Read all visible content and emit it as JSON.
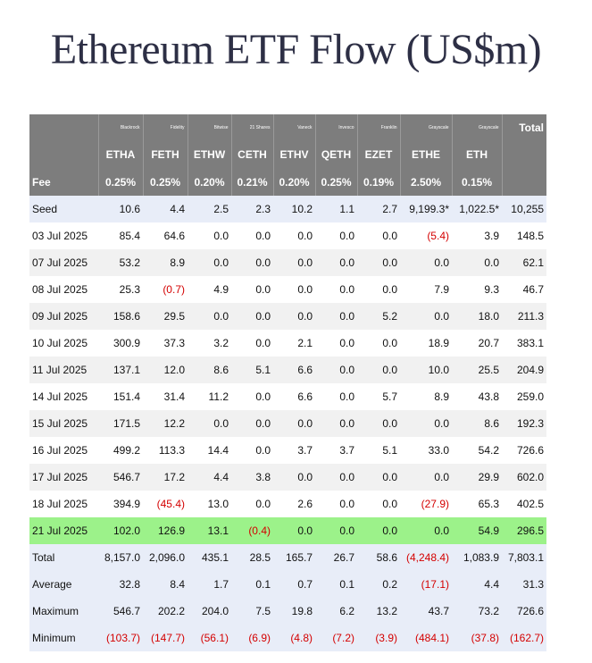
{
  "title": "Ethereum ETF Flow (US$m)",
  "header": {
    "total_label": "Total",
    "fee_label": "Fee",
    "funds": [
      {
        "issuer": "Blackrock",
        "ticker": "ETHA",
        "fee": "0.25%"
      },
      {
        "issuer": "Fidelity",
        "ticker": "FETH",
        "fee": "0.25%"
      },
      {
        "issuer": "Bitwise",
        "ticker": "ETHW",
        "fee": "0.20%"
      },
      {
        "issuer": "21 Shares",
        "ticker": "CETH",
        "fee": "0.21%"
      },
      {
        "issuer": "Vaneck",
        "ticker": "ETHV",
        "fee": "0.20%"
      },
      {
        "issuer": "Invesco",
        "ticker": "QETH",
        "fee": "0.25%"
      },
      {
        "issuer": "Franklin",
        "ticker": "EZET",
        "fee": "0.19%"
      },
      {
        "issuer": "Grayscale",
        "ticker": "ETHE",
        "fee": "2.50%"
      },
      {
        "issuer": "Grayscale",
        "ticker": "ETH",
        "fee": "0.15%"
      }
    ]
  },
  "rows": [
    {
      "label": "Seed",
      "style": "blue",
      "values": [
        "10.6",
        "4.4",
        "2.5",
        "2.3",
        "10.2",
        "1.1",
        "2.7",
        "9,199.3*",
        "1,022.5*",
        "10,255"
      ]
    },
    {
      "label": "03 Jul 2025",
      "style": "plain",
      "values": [
        "85.4",
        "64.6",
        "0.0",
        "0.0",
        "0.0",
        "0.0",
        "0.0",
        "(5.4)",
        "3.9",
        "148.5"
      ]
    },
    {
      "label": "07 Jul 2025",
      "style": "alt",
      "values": [
        "53.2",
        "8.9",
        "0.0",
        "0.0",
        "0.0",
        "0.0",
        "0.0",
        "0.0",
        "0.0",
        "62.1"
      ]
    },
    {
      "label": "08 Jul 2025",
      "style": "plain",
      "values": [
        "25.3",
        "(0.7)",
        "4.9",
        "0.0",
        "0.0",
        "0.0",
        "0.0",
        "7.9",
        "9.3",
        "46.7"
      ]
    },
    {
      "label": "09 Jul 2025",
      "style": "alt",
      "values": [
        "158.6",
        "29.5",
        "0.0",
        "0.0",
        "0.0",
        "0.0",
        "5.2",
        "0.0",
        "18.0",
        "211.3"
      ]
    },
    {
      "label": "10 Jul 2025",
      "style": "plain",
      "values": [
        "300.9",
        "37.3",
        "3.2",
        "0.0",
        "2.1",
        "0.0",
        "0.0",
        "18.9",
        "20.7",
        "383.1"
      ]
    },
    {
      "label": "11 Jul 2025",
      "style": "alt",
      "values": [
        "137.1",
        "12.0",
        "8.6",
        "5.1",
        "6.6",
        "0.0",
        "0.0",
        "10.0",
        "25.5",
        "204.9"
      ]
    },
    {
      "label": "14 Jul 2025",
      "style": "plain",
      "values": [
        "151.4",
        "31.4",
        "11.2",
        "0.0",
        "6.6",
        "0.0",
        "5.7",
        "8.9",
        "43.8",
        "259.0"
      ]
    },
    {
      "label": "15 Jul 2025",
      "style": "alt",
      "values": [
        "171.5",
        "12.2",
        "0.0",
        "0.0",
        "0.0",
        "0.0",
        "0.0",
        "0.0",
        "8.6",
        "192.3"
      ]
    },
    {
      "label": "16 Jul 2025",
      "style": "plain",
      "values": [
        "499.2",
        "113.3",
        "14.4",
        "0.0",
        "3.7",
        "3.7",
        "5.1",
        "33.0",
        "54.2",
        "726.6"
      ]
    },
    {
      "label": "17 Jul 2025",
      "style": "alt",
      "values": [
        "546.7",
        "17.2",
        "4.4",
        "3.8",
        "0.0",
        "0.0",
        "0.0",
        "0.0",
        "29.9",
        "602.0"
      ]
    },
    {
      "label": "18 Jul 2025",
      "style": "plain",
      "values": [
        "394.9",
        "(45.4)",
        "13.0",
        "0.0",
        "2.6",
        "0.0",
        "0.0",
        "(27.9)",
        "65.3",
        "402.5"
      ]
    },
    {
      "label": "21 Jul 2025",
      "style": "green",
      "values": [
        "102.0",
        "126.9",
        "13.1",
        "(0.4)",
        "0.0",
        "0.0",
        "0.0",
        "0.0",
        "54.9",
        "296.5"
      ]
    },
    {
      "label": "Total",
      "style": "blue",
      "values": [
        "8,157.0",
        "2,096.0",
        "435.1",
        "28.5",
        "165.7",
        "26.7",
        "58.6",
        "(4,248.4)",
        "1,083.9",
        "7,803.1"
      ]
    },
    {
      "label": "Average",
      "style": "blue",
      "values": [
        "32.8",
        "8.4",
        "1.7",
        "0.1",
        "0.7",
        "0.1",
        "0.2",
        "(17.1)",
        "4.4",
        "31.3"
      ]
    },
    {
      "label": "Maximum",
      "style": "blue",
      "values": [
        "546.7",
        "202.2",
        "204.0",
        "7.5",
        "19.8",
        "6.2",
        "13.2",
        "43.7",
        "73.2",
        "726.6"
      ]
    },
    {
      "label": "Minimum",
      "style": "blue",
      "values": [
        "(103.7)",
        "(147.7)",
        "(56.1)",
        "(6.9)",
        "(4.8)",
        "(7.2)",
        "(3.9)",
        "(484.1)",
        "(37.8)",
        "(162.7)"
      ]
    }
  ],
  "colors": {
    "header_bg": "#7d7d7d",
    "highlight_row": "#9cf28a",
    "summary_row": "#e8edf8",
    "alt_row": "#f1f1f1",
    "negative": "#d40000"
  }
}
